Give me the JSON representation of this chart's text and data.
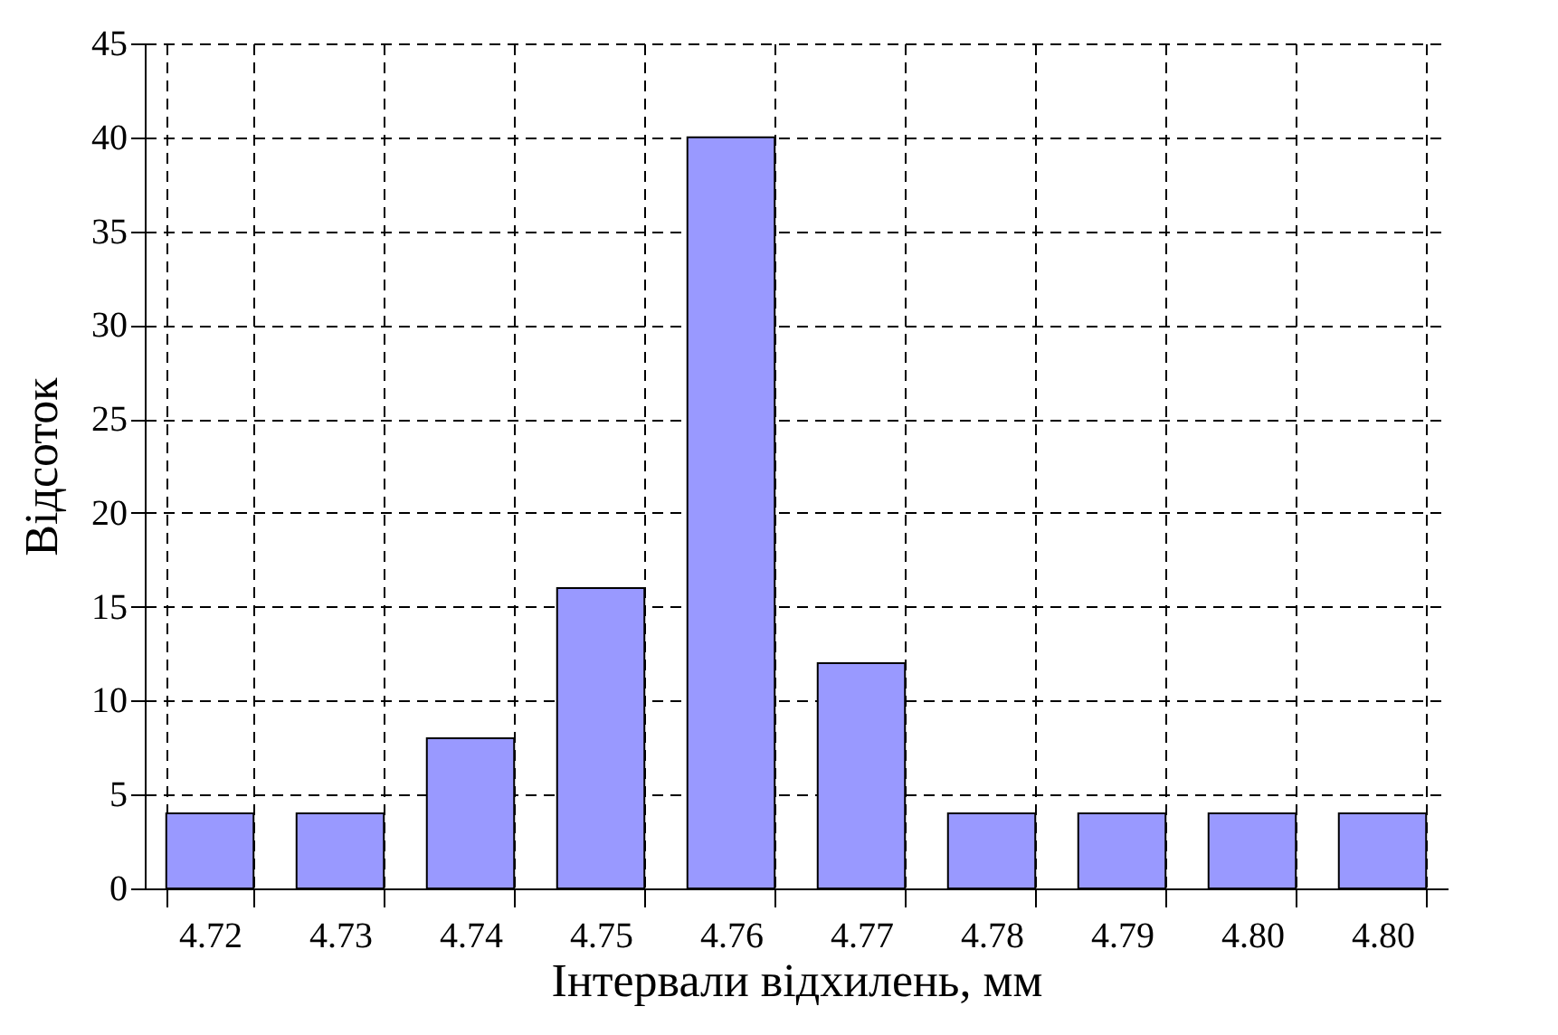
{
  "chart_data": {
    "type": "bar",
    "xlabel": "Інтервали відхилень, мм",
    "ylabel": "Відсоток",
    "categories": [
      "4.72",
      "4.73",
      "4.74",
      "4.75",
      "4.76",
      "4.77",
      "4.78",
      "4.79",
      "4.80",
      "4.80"
    ],
    "values": [
      4,
      4,
      8,
      16,
      40,
      12,
      4,
      4,
      4,
      4
    ],
    "color": "#9999ff",
    "ylim": [
      0,
      45
    ],
    "yticks": [
      0,
      5,
      10,
      15,
      20,
      25,
      30,
      35,
      40,
      45
    ],
    "grid": true
  }
}
